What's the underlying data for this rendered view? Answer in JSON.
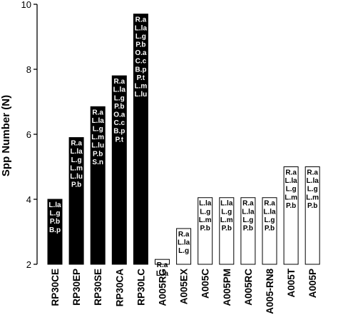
{
  "chart_data": {
    "type": "bar",
    "title": "",
    "xlabel": "",
    "ylabel": "Spp Number (N)",
    "ylim": [
      2,
      10
    ],
    "yticks": [
      "2",
      "4",
      "6",
      "8",
      "10"
    ],
    "grid": false,
    "legend": "none",
    "categories": [
      "RP30CE",
      "RP30EP",
      "RP30SE",
      "RP30CA",
      "RP30LC",
      "A005RG",
      "A005EX",
      "A005C",
      "A005PM",
      "A005RC",
      "A005-RN8",
      "A005T",
      "A005P"
    ],
    "values": [
      4,
      5.9,
      6.85,
      7.8,
      9.7,
      2.15,
      3.1,
      4.05,
      4.05,
      4.05,
      4.05,
      5,
      5
    ],
    "fills": [
      "black",
      "black",
      "black",
      "black",
      "black",
      "white",
      "white",
      "white",
      "white",
      "white",
      "white",
      "white",
      "white"
    ],
    "species_labels": [
      [
        "L.la",
        "L.g",
        "P.b",
        "B.p"
      ],
      [
        "R.a",
        "L.la",
        "L.g",
        "L.m",
        "L.lu",
        "P.b"
      ],
      [
        "R.a",
        "L.la",
        "L.g",
        "L.m",
        "L.lu",
        "P.b",
        "S.n"
      ],
      [
        "R.a",
        "L.la",
        "L.g",
        "P.b",
        "O.a",
        "C.c",
        "B.p",
        "P.t"
      ],
      [
        "R.a",
        "L.la",
        "L.g",
        "P.b",
        "O.a",
        "C.c",
        "B.p",
        "P.t",
        "L.m",
        "L.lu"
      ],
      [
        "R.a",
        "L.la"
      ],
      [
        "R.a",
        "L.la",
        "L.g"
      ],
      [
        "L.la",
        "L.g",
        "L.m",
        "P.b"
      ],
      [
        "L.la",
        "L.g",
        "L.m",
        "P.b"
      ],
      [
        "R.a",
        "L.la",
        "L.g",
        "P.b"
      ],
      [
        "R.a",
        "L.la",
        "L.g",
        "P.b"
      ],
      [
        "R.a",
        "L.la",
        "L.g",
        "L.m",
        "P.b"
      ],
      [
        "R.a",
        "L.la",
        "L.g",
        "L.m",
        "P.b"
      ]
    ],
    "colors": {
      "filled": "#000000",
      "empty": "#ffffff",
      "stroke": "#000000",
      "label_on_filled": "#ffffff",
      "label_on_empty": "#000000"
    }
  }
}
